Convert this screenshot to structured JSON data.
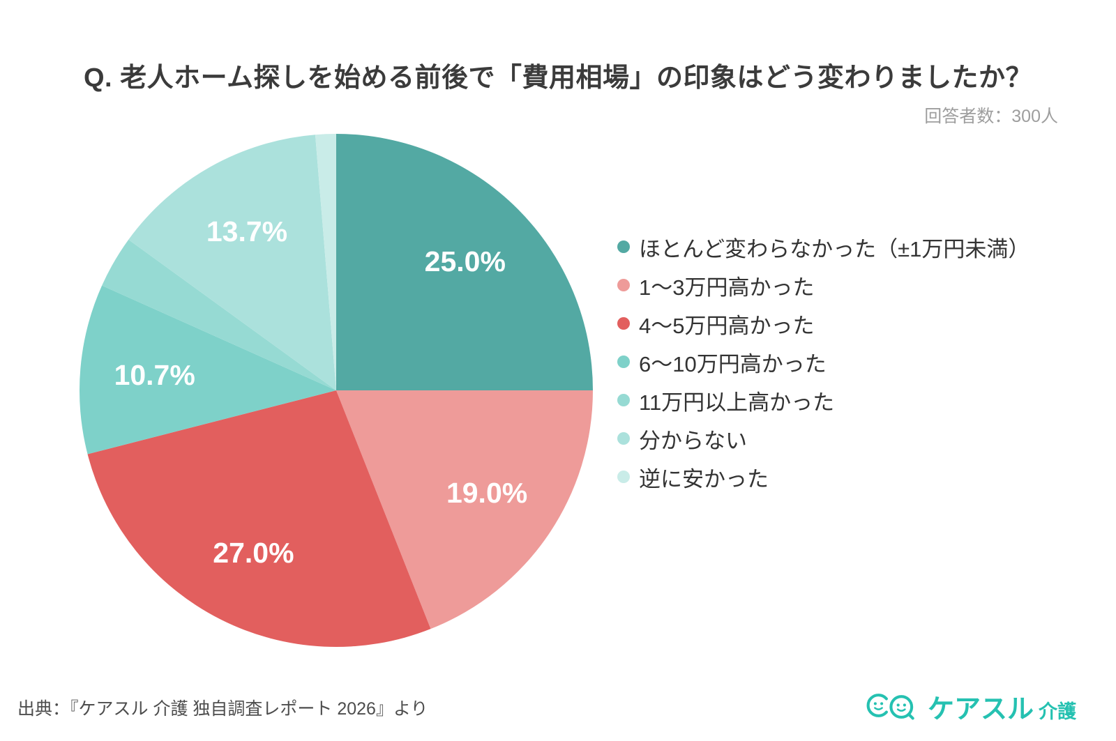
{
  "title": "Q. 老人ホーム探しを始める前後で「費用相場」の印象はどう変わりましたか？",
  "respondents_note": "回答者数：300人",
  "chart_data": {
    "type": "pie",
    "title": "老人ホーム探しを始める前後で「費用相場」の印象はどう変わりましたか",
    "unit": "%",
    "total_respondents": 300,
    "start_angle": "12-oclock",
    "direction": "clockwise",
    "legend_position": "right",
    "percent_label_color": "#FFFFFF",
    "segments": [
      {
        "label": "ほとんど変わらなかった（±1万円未満）",
        "value": 25.0,
        "percent_label": "25.0%",
        "color": "#53A9A3",
        "show_percent": true
      },
      {
        "label": "1～3万円高かった",
        "value": 19.0,
        "percent_label": "19.0%",
        "color": "#EE9B99",
        "show_percent": true
      },
      {
        "label": "4～5万円高かった",
        "value": 27.0,
        "percent_label": "27.0%",
        "color": "#E25F5E",
        "show_percent": true
      },
      {
        "label": "6～10万円高かった",
        "value": 10.7,
        "percent_label": "10.7%",
        "color": "#7ED1C9",
        "show_percent": true
      },
      {
        "label": "11万円以上高かった",
        "value": 3.3,
        "percent_label": "3.3%",
        "color": "#96DAD3",
        "show_percent": false
      },
      {
        "label": "分からない",
        "value": 13.7,
        "percent_label": "13.7%",
        "color": "#ABE1DC",
        "show_percent": true
      },
      {
        "label": "逆に安かった",
        "value": 1.3,
        "percent_label": "1.3%",
        "color": "#C9ECE8",
        "show_percent": false
      }
    ]
  },
  "source_note": "出典：『ケアスル 介護 独自調査レポート 2026』より",
  "logo": {
    "brand": "ケアスル",
    "suffix": "介護",
    "color": "#25C1B1"
  }
}
